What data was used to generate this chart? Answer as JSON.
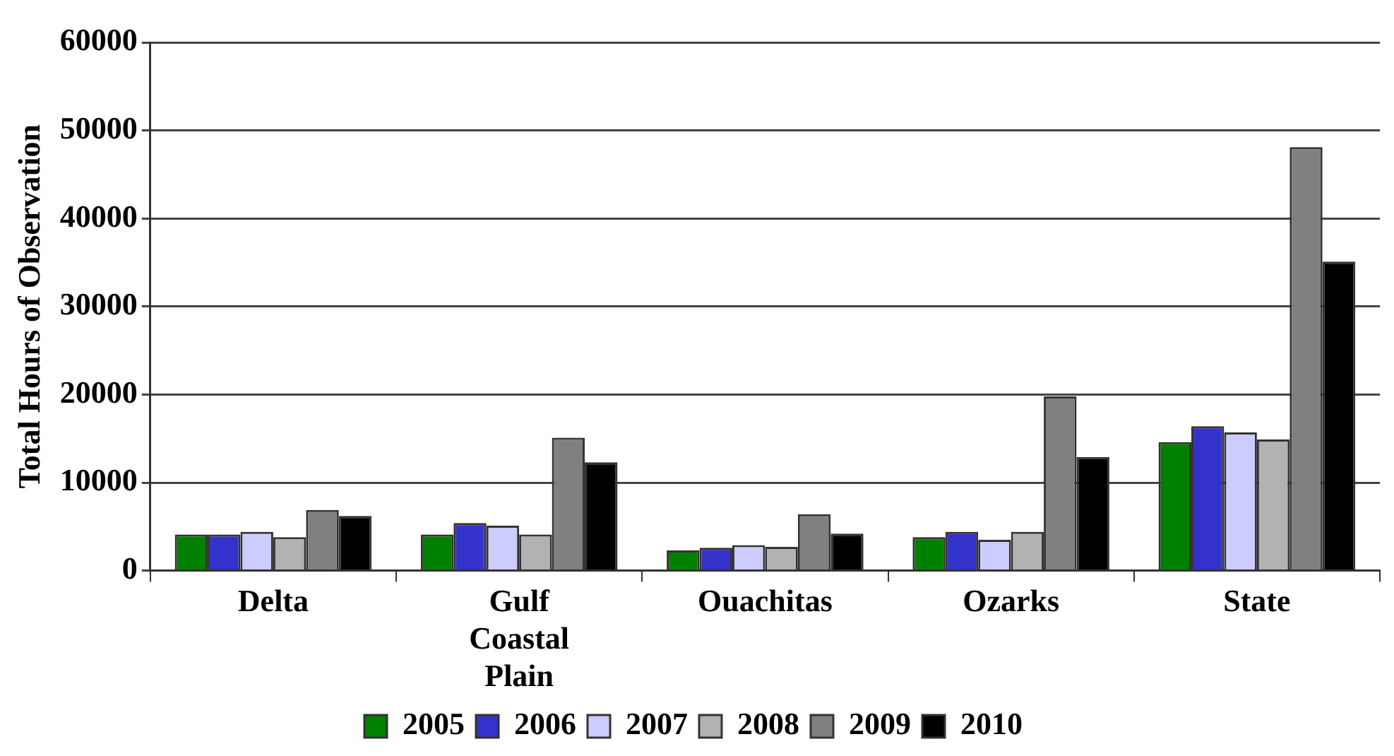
{
  "chart_data": {
    "type": "bar",
    "ylabel": "Total Hours of Observation",
    "categories": [
      "Delta",
      "Gulf Coastal Plain",
      "Ouachitas",
      "Ozarks",
      "State"
    ],
    "series": [
      {
        "name": "2005",
        "color": "#008000",
        "values": [
          4100,
          4100,
          2300,
          3800,
          14600
        ]
      },
      {
        "name": "2006",
        "color": "#3333cc",
        "values": [
          4100,
          5400,
          2600,
          4400,
          16400
        ]
      },
      {
        "name": "2007",
        "color": "#ccccff",
        "values": [
          4400,
          5100,
          2900,
          3500,
          15700
        ]
      },
      {
        "name": "2008",
        "color": "#b2b2b2",
        "values": [
          3800,
          4100,
          2700,
          4400,
          14900
        ]
      },
      {
        "name": "2009",
        "color": "#808080",
        "values": [
          6900,
          15100,
          6400,
          19800,
          48100
        ]
      },
      {
        "name": "2010",
        "color": "#000000",
        "values": [
          6200,
          12300,
          4200,
          12900,
          35100
        ]
      }
    ],
    "ylim": [
      0,
      60000
    ],
    "yticks": [
      0,
      10000,
      20000,
      30000,
      40000,
      50000,
      60000
    ],
    "grid": "y",
    "legend": "bottom"
  }
}
